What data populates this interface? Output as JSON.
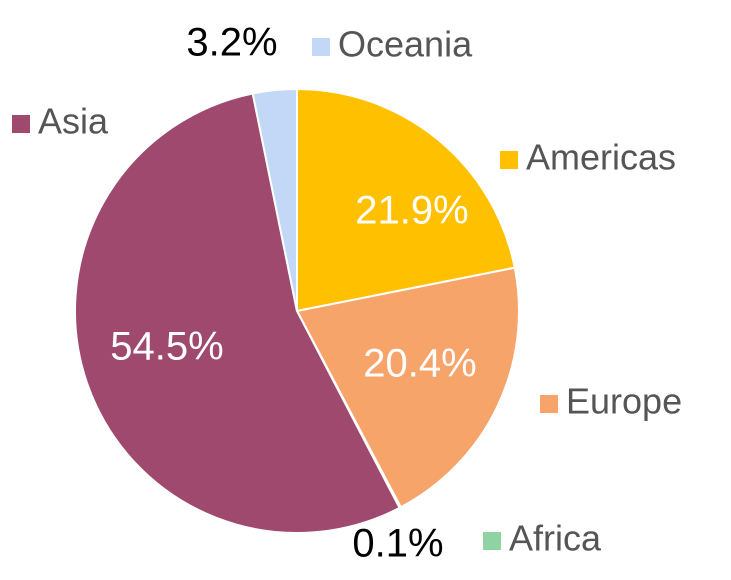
{
  "chart_data": {
    "type": "pie",
    "categories": [
      "Americas",
      "Europe",
      "Africa",
      "Asia",
      "Oceania"
    ],
    "values": [
      21.9,
      20.4,
      0.1,
      54.5,
      3.2
    ],
    "value_labels": [
      "21.9%",
      "20.4%",
      "0.1%",
      "54.5%",
      "3.2%"
    ],
    "colors": [
      "#FFC000",
      "#F7A46B",
      "#8FD3A2",
      "#A0496F",
      "#C3D8F6"
    ]
  }
}
